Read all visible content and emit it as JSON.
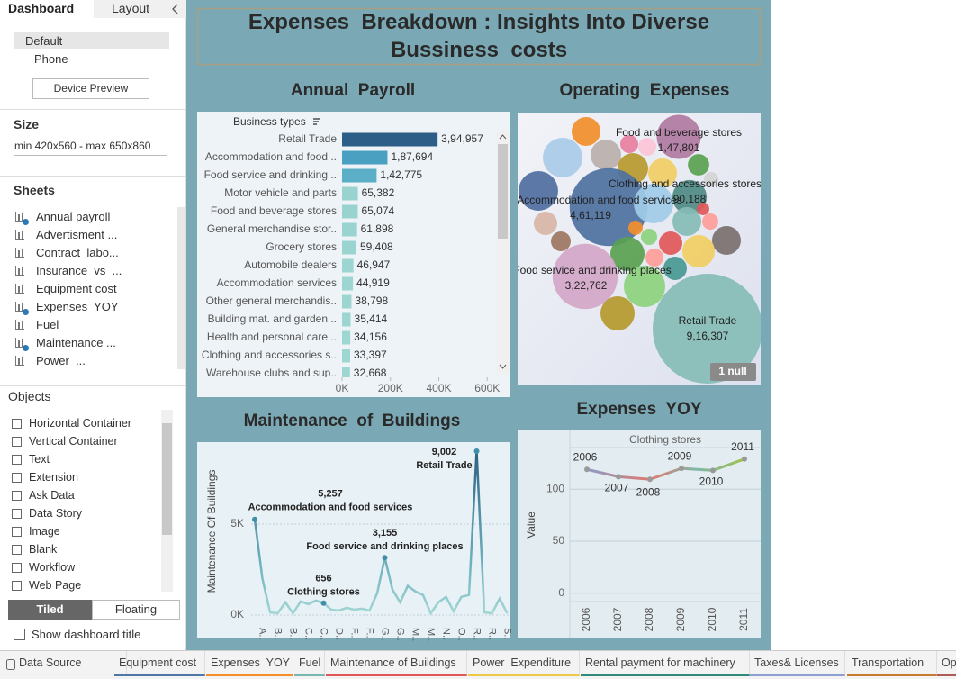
{
  "sidebar": {
    "tabs": [
      "Dashboard",
      "Layout"
    ],
    "devices": [
      "Default",
      "Phone"
    ],
    "device_preview": "Device Preview",
    "size_heading": "Size",
    "size_value": "min 420x560 - max 650x860",
    "sheets_heading": "Sheets",
    "sheets": [
      "Annual payroll",
      "Advertisment ...",
      "Contract  labo...",
      "Insurance  vs  ...",
      "Equipment cost",
      "Expenses  YOY",
      "Fuel",
      "Maintenance ...",
      "Power  ..."
    ],
    "objects_heading": "Objects",
    "objects": [
      "Horizontal Container",
      "Vertical Container",
      "Text",
      "Extension",
      "Ask Data",
      "Data Story",
      "Image",
      "Blank",
      "Workflow",
      "Web Page"
    ],
    "layout_modes": [
      "Tiled",
      "Floating"
    ],
    "show_title": "Show dashboard title"
  },
  "dashboard": {
    "title": "Expenses  Breakdown : Insights Into Diverse Bussiness  costs"
  },
  "chart_data": [
    {
      "type": "bar",
      "orientation": "horizontal",
      "title": "Annual  Payroll",
      "header": "Business types",
      "categories": [
        "Retail Trade",
        "Accommodation and food ..",
        "Food service and drinking ..",
        "Motor vehicle and parts",
        "Food and beverage stores",
        "General merchandise stor..",
        "Grocery stores",
        "Automobile dealers",
        "Accommodation services",
        "Other general merchandis..",
        "Building mat. and garden ..",
        "Health and personal care ..",
        "Clothing and accessories s..",
        "Warehouse clubs and sup.."
      ],
      "values": [
        394957,
        187694,
        142775,
        65382,
        65074,
        61898,
        59408,
        46947,
        44919,
        38798,
        35414,
        34156,
        33397,
        32668
      ],
      "value_labels": [
        "3,94,957",
        "1,87,694",
        "1,42,775",
        "65,382",
        "65,074",
        "61,898",
        "59,408",
        "46,947",
        "44,919",
        "38,798",
        "35,414",
        "34,156",
        "33,397",
        "32,668"
      ],
      "colors": [
        "#2d5e88",
        "#4aa0c0",
        "#5aaec6",
        "#99d3d0",
        "#99d3d0",
        "#9ad4d0",
        "#9ad4d0",
        "#9cd5d1",
        "#9cd5d1",
        "#9dd6d1",
        "#9dd6d1",
        "#9ed6d2",
        "#9ed6d2",
        "#9ed6d2"
      ],
      "xlim": [
        0,
        625000
      ],
      "xticks": [
        {
          "value": 0,
          "label": "0K"
        },
        {
          "value": 200000,
          "label": "200K"
        },
        {
          "value": 400000,
          "label": "400K"
        },
        {
          "value": 600000,
          "label": "600K"
        }
      ]
    },
    {
      "type": "bubble",
      "title": "Operating  Expenses",
      "categories": [
        null,
        null,
        null,
        null,
        "Food and beverage stores",
        null,
        null,
        null,
        null,
        null,
        null,
        "Accommodation and food services",
        "Clothing and accessories stores",
        null,
        null,
        null,
        null,
        null,
        null,
        null,
        null,
        null,
        null,
        null,
        null,
        null,
        null,
        "Food service and drinking places",
        null,
        null,
        "Retail Trade"
      ],
      "values": [
        63000,
        119000,
        24600,
        71000,
        147801,
        24600,
        71000,
        63000,
        35000,
        15800,
        119000,
        461119,
        90188,
        12000,
        119000,
        63000,
        20000,
        41600,
        15800,
        29800,
        20000,
        63000,
        41600,
        80000,
        89000,
        24600,
        41600,
        322762,
        130000,
        89000,
        916307
      ],
      "value_labels": [
        null,
        null,
        null,
        null,
        "1,47,801",
        null,
        null,
        null,
        null,
        null,
        null,
        "4,61,119",
        "90,188",
        null,
        null,
        null,
        null,
        null,
        null,
        null,
        null,
        null,
        null,
        null,
        null,
        null,
        null,
        "3,22,762",
        null,
        null,
        "9,16,307"
      ],
      "colors": [
        "#f28e2b",
        "#a8cbe8",
        "#e87ea0",
        "#bab0ac",
        "#b07aa1",
        "#fbc4d6",
        "#b6992d",
        "#f1ce63",
        "#59a14f",
        "#d4d4d4",
        "#4e6e9e",
        "#4e71a0",
        "#4f8a84",
        "#e15759",
        "#a0cbe8",
        "#86bcb6",
        "#ff9d9a",
        "#d7b5a6",
        "#f28e2b",
        "#9d7660",
        "#8cd17d",
        "#79706e",
        "#e15759",
        "#f1ce63",
        "#59a14f",
        "#ff9d9a",
        "#499894",
        "#d4a6c8",
        "#8cd17d",
        "#b6992d",
        "#86bcb6"
      ],
      "null_label": "1 null"
    },
    {
      "type": "line",
      "title": "Maintenance  of  Buildings",
      "ylabel": "Maintenance Of Buildings",
      "categories": [
        null,
        "A..",
        null,
        "B..",
        null,
        "B..",
        null,
        "C..",
        null,
        "C..",
        null,
        "D..",
        null,
        "F..",
        null,
        "F..",
        null,
        "G..",
        null,
        "G..",
        null,
        "M..",
        null,
        "M..",
        null,
        "N..",
        null,
        "O..",
        null,
        "R..",
        null,
        "R..",
        null,
        "S.."
      ],
      "values": [
        5257,
        2000,
        150,
        100,
        700,
        100,
        750,
        600,
        800,
        656,
        300,
        250,
        400,
        300,
        350,
        250,
        1200,
        3155,
        1400,
        700,
        1600,
        1300,
        1100,
        100,
        700,
        1000,
        200,
        1000,
        1100,
        9002,
        150,
        100,
        900,
        100
      ],
      "value_labels": [
        "5,257",
        null,
        null,
        null,
        null,
        null,
        null,
        null,
        null,
        "656",
        null,
        null,
        null,
        null,
        null,
        null,
        null,
        "3,155",
        null,
        null,
        null,
        null,
        null,
        null,
        null,
        null,
        null,
        null,
        null,
        "9,002",
        null,
        null,
        null,
        null
      ],
      "point_labels": [
        "Accommodation and food services",
        null,
        null,
        null,
        null,
        null,
        null,
        null,
        null,
        "Clothing stores",
        null,
        null,
        null,
        null,
        null,
        null,
        null,
        "Food service and drinking places",
        null,
        null,
        null,
        null,
        null,
        null,
        null,
        null,
        null,
        null,
        null,
        "Retail Trade",
        null,
        null,
        null,
        null
      ],
      "ylim": [
        -840,
        9400
      ],
      "yticks": [
        {
          "value": 0,
          "label": "0K"
        },
        {
          "value": 5000,
          "label": "5K"
        }
      ],
      "grid": true
    },
    {
      "type": "line",
      "title": "Expenses  YOY",
      "header": "Clothing stores",
      "ylabel": "Value",
      "categories": [
        "2006",
        "2007",
        "2008",
        "2009",
        "2010",
        "2011"
      ],
      "values": [
        119,
        112,
        109.5,
        120,
        118,
        129
      ],
      "ylim": [
        -8,
        140
      ],
      "yticks": [
        0,
        50,
        100
      ],
      "grid": true
    }
  ],
  "tabs": [
    "Data Source",
    "Equipment cost",
    "Expenses  YOY",
    "Fuel",
    "Maintenance of Buildings",
    "Power  Expenditure",
    "Rental payment for machinery",
    "Taxes& Licenses",
    "Transportation",
    "Operating Expenses"
  ]
}
